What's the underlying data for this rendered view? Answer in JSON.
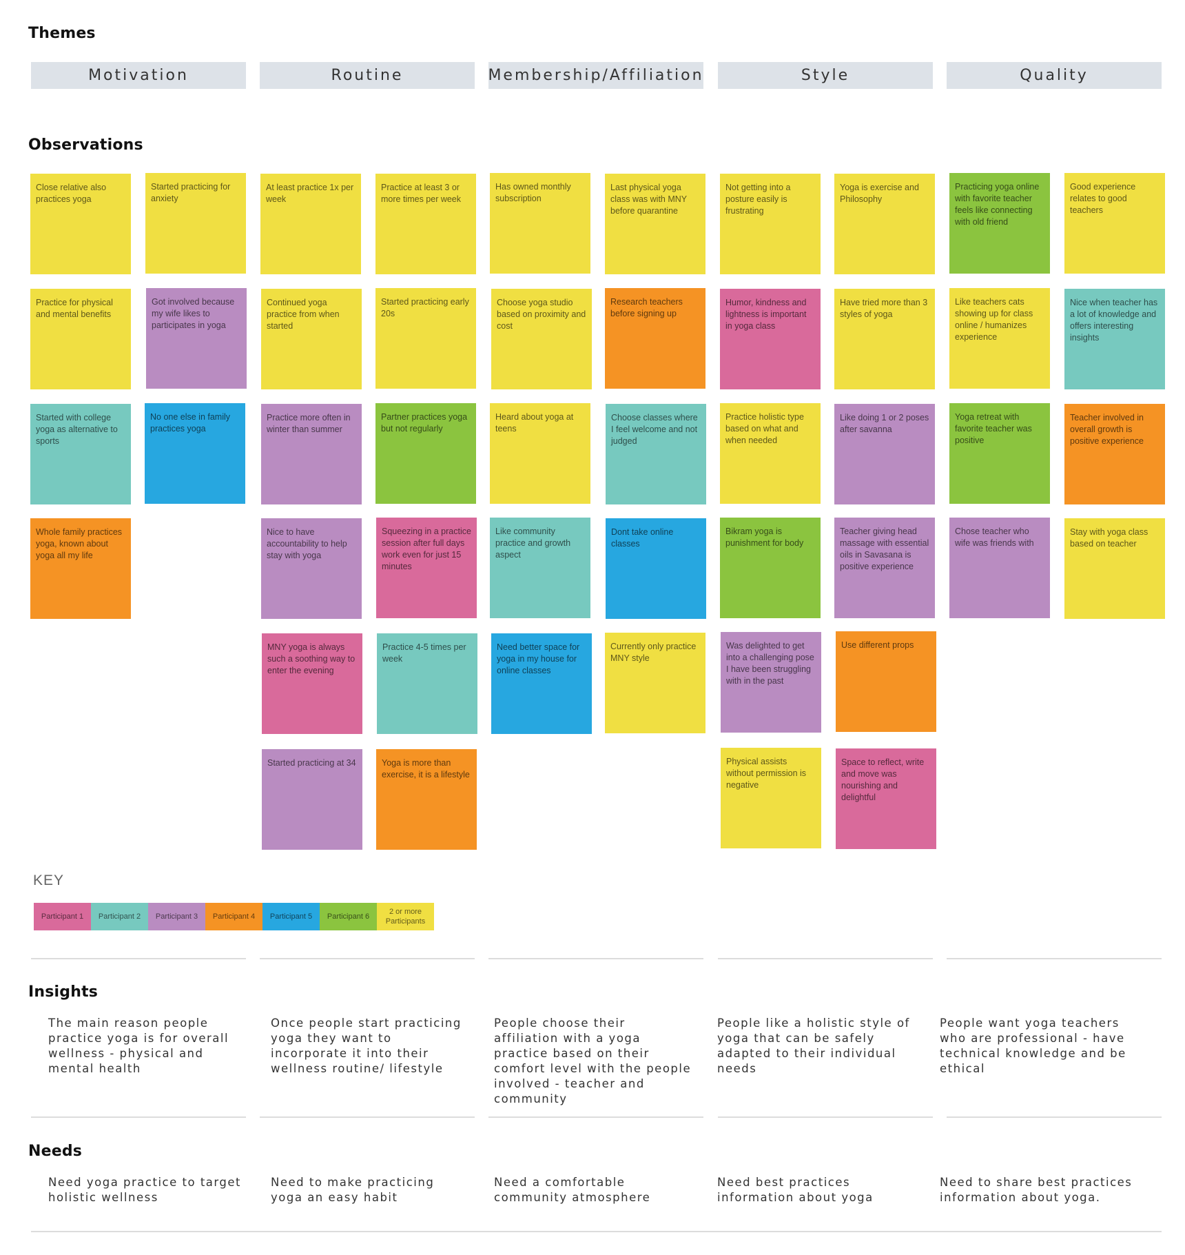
{
  "headings": {
    "themes": "Themes",
    "observations": "Observations",
    "key": "KEY",
    "insights": "Insights",
    "needs": "Needs"
  },
  "colors": {
    "yellow": "#f0df42",
    "green": "#8bc43f",
    "purple": "#b98cc1",
    "teal": "#77c9bf",
    "blue": "#27a7e0",
    "orange": "#f59324",
    "pink": "#d96a9b",
    "theme_bg": "#dde2e8"
  },
  "themes": [
    "Motivation",
    "Routine",
    "Membership/Affiliation",
    "Style",
    "Quality"
  ],
  "notes": [
    {
      "text": "Close relative also practices yoga",
      "color": "yellow"
    },
    {
      "text": "Started practicing for anxiety",
      "color": "yellow"
    },
    {
      "text": "Practice for physical and mental benefits",
      "color": "yellow"
    },
    {
      "text": "Got involved because my wife likes to participates in yoga",
      "color": "purple"
    },
    {
      "text": "Started with college yoga as alternative to sports",
      "color": "teal"
    },
    {
      "text": "No one else in family practices yoga",
      "color": "blue"
    },
    {
      "text": "Whole family practices yoga, known about yoga all my life",
      "color": "orange"
    },
    {
      "text": "At least practice 1x per week",
      "color": "yellow"
    },
    {
      "text": "Practice at least 3 or more times per week",
      "color": "yellow"
    },
    {
      "text": "Continued yoga practice from when started",
      "color": "yellow"
    },
    {
      "text": "Started practicing early 20s",
      "color": "yellow"
    },
    {
      "text": "Practice more often in winter than summer",
      "color": "purple"
    },
    {
      "text": "Partner practices yoga but not regularly",
      "color": "green"
    },
    {
      "text": "Nice to have accountability to help stay with yoga",
      "color": "purple"
    },
    {
      "text": "Squeezing in a practice session after full days work even for just 15 minutes",
      "color": "pink"
    },
    {
      "text": "MNY yoga is always such a soothing way to enter the evening",
      "color": "pink"
    },
    {
      "text": "Practice 4-5 times per week",
      "color": "teal"
    },
    {
      "text": "Started practicing at 34",
      "color": "purple"
    },
    {
      "text": "Yoga is more than exercise, it is a lifestyle",
      "color": "orange"
    },
    {
      "text": "Has owned monthly subscription",
      "color": "yellow"
    },
    {
      "text": "Last physical yoga class was with MNY before quarantine",
      "color": "yellow"
    },
    {
      "text": "Choose yoga studio based on proximity and cost",
      "color": "yellow"
    },
    {
      "text": "Research teachers before signing up",
      "color": "orange"
    },
    {
      "text": "Heard about yoga at teens",
      "color": "yellow"
    },
    {
      "text": "Choose classes where I feel welcome and not judged",
      "color": "teal"
    },
    {
      "text": "Like community practice and growth aspect",
      "color": "teal"
    },
    {
      "text": "Dont take online classes",
      "color": "blue"
    },
    {
      "text": "Need better space for yoga in my house for online classes",
      "color": "blue"
    },
    {
      "text": "Currently only practice MNY style",
      "color": "yellow"
    },
    {
      "text": "Not getting into a posture easily is frustrating",
      "color": "yellow"
    },
    {
      "text": "Yoga is exercise and Philosophy",
      "color": "yellow"
    },
    {
      "text": "Humor, kindness and lightness is important in yoga class",
      "color": "pink"
    },
    {
      "text": "Have tried more than 3 styles of yoga",
      "color": "yellow"
    },
    {
      "text": "Practice holistic type based on what and when needed",
      "color": "yellow"
    },
    {
      "text": "Like doing 1 or 2 poses after savanna",
      "color": "purple"
    },
    {
      "text": "Bikram yoga is punishment for body",
      "color": "green"
    },
    {
      "text": "Teacher giving head massage with essential oils in Savasana is positive experience",
      "color": "purple"
    },
    {
      "text": "Was delighted to get into a challenging pose I have been struggling with in the past",
      "color": "purple"
    },
    {
      "text": "Use different props",
      "color": "orange"
    },
    {
      "text": "Physical assists without permission is negative",
      "color": "yellow"
    },
    {
      "text": "Space to reflect, write and move was nourishing and delightful",
      "color": "pink"
    },
    {
      "text": "Practicing yoga online with favorite teacher feels like connecting with old friend",
      "color": "green"
    },
    {
      "text": "Good experience relates to good teachers",
      "color": "yellow"
    },
    {
      "text": "Like teachers cats showing up for class online / humanizes experience",
      "color": "yellow"
    },
    {
      "text": "Nice when teacher has a lot of knowledge and offers interesting insights",
      "color": "teal"
    },
    {
      "text": "Yoga retreat with favorite teacher was positive",
      "color": "green"
    },
    {
      "text": "Teacher involved in overall growth is positive experience",
      "color": "orange"
    },
    {
      "text": "Chose teacher who wife was friends with",
      "color": "purple"
    },
    {
      "text": "Stay with yoga class based on teacher",
      "color": "yellow"
    }
  ],
  "key": [
    {
      "label": "Participant 1",
      "color": "pink"
    },
    {
      "label": "Participant 2",
      "color": "teal"
    },
    {
      "label": "Participant 3",
      "color": "purple"
    },
    {
      "label": "Participant 4",
      "color": "orange"
    },
    {
      "label": "Participant 5",
      "color": "blue"
    },
    {
      "label": "Participant 6",
      "color": "green"
    },
    {
      "label": "2 or more Participants",
      "color": "yellow"
    }
  ],
  "insights": [
    "The main reason people practice yoga is for overall wellness - physical and mental health",
    "Once people start practicing yoga they want to incorporate it into their wellness routine/ lifestyle",
    "People choose their affiliation with a yoga practice based on their comfort level with the people involved - teacher and community",
    "People like a holistic style of yoga that can be safely adapted to their individual needs",
    "People want yoga teachers who are professional - have technical knowledge and be ethical"
  ],
  "needs": [
    "Need yoga practice to target holistic wellness",
    "Need to make practicing yoga an easy habit",
    "Need a comfortable community atmosphere",
    "Need best practices information about yoga",
    "Need to share best practices information about yoga."
  ]
}
